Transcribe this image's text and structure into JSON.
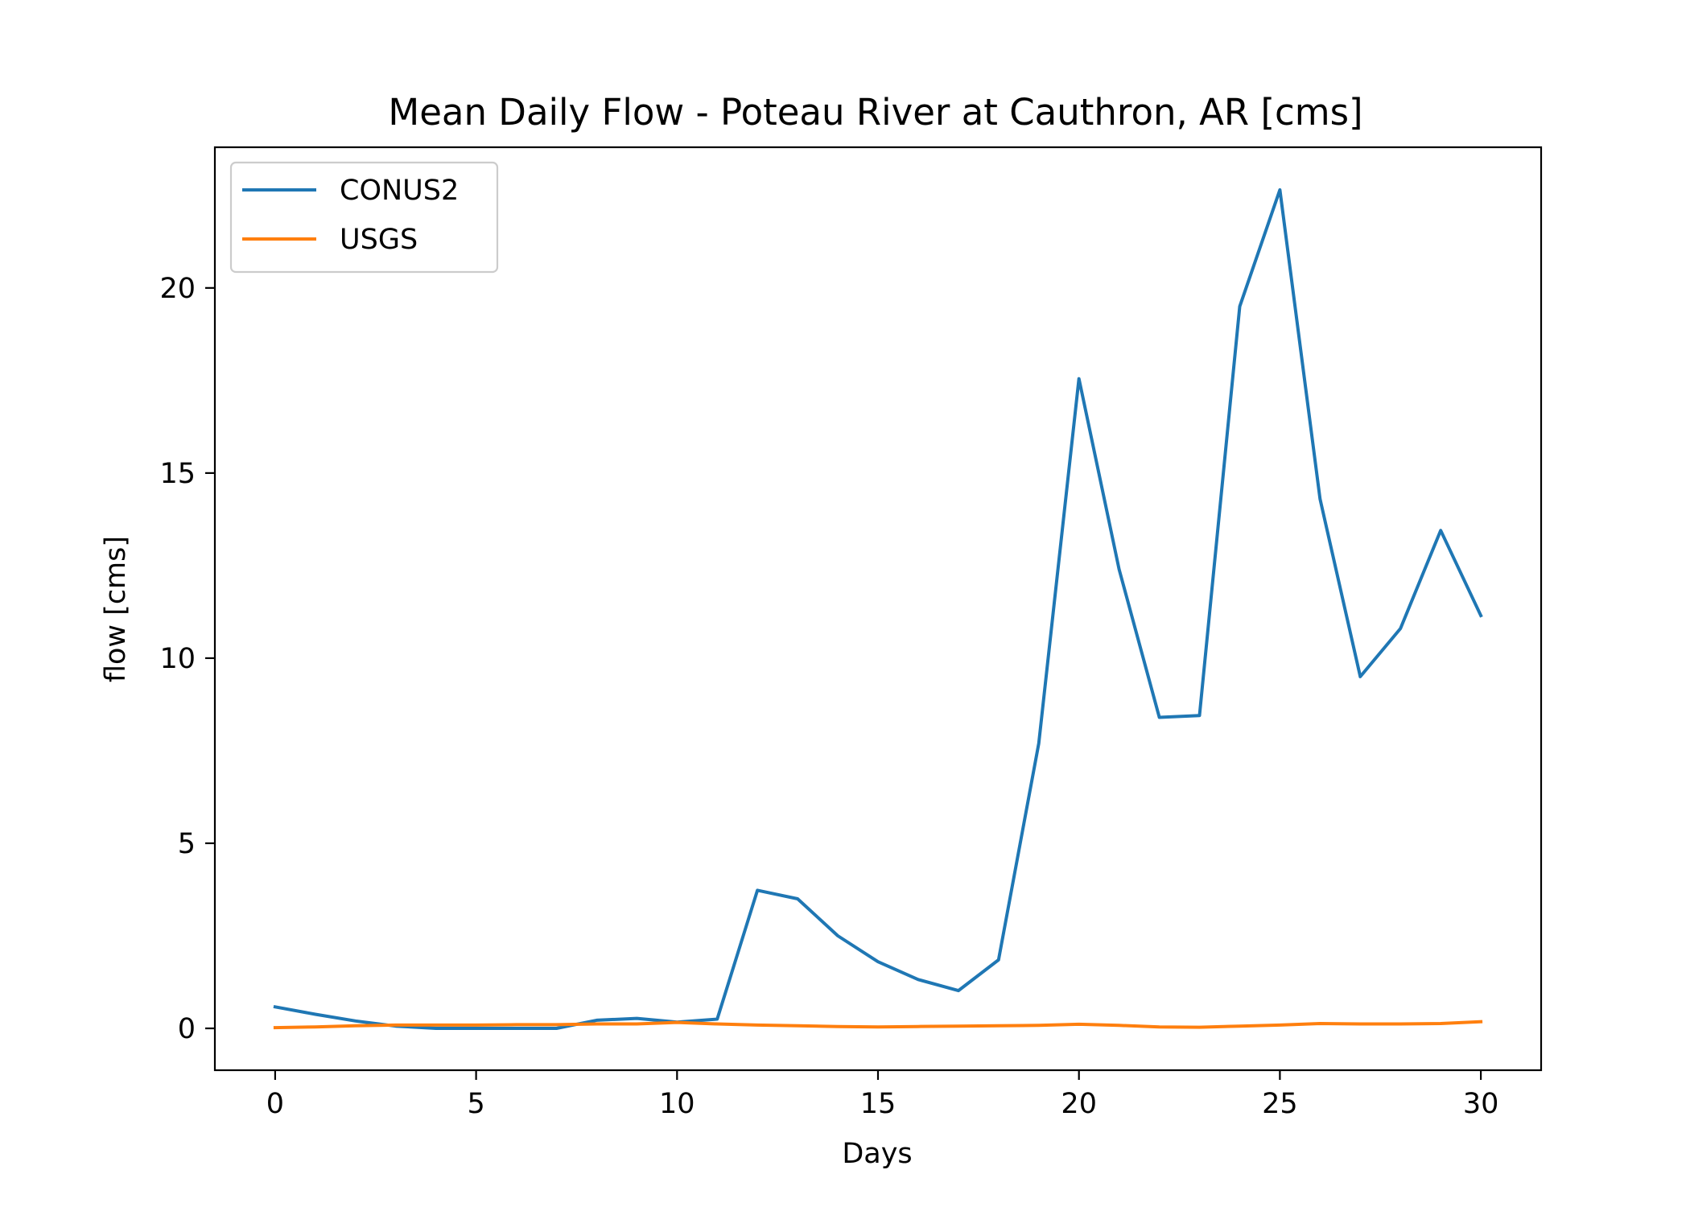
{
  "chart_data": {
    "type": "line",
    "title": "Mean Daily Flow - Poteau River at Cauthron, AR [cms]",
    "xlabel": "Days",
    "ylabel": "flow [cms]",
    "xlim": [
      -1.5,
      31.5
    ],
    "ylim": [
      -1.13,
      23.8
    ],
    "xticks": [
      0,
      5,
      10,
      15,
      20,
      25,
      30
    ],
    "yticks": [
      0,
      5,
      10,
      15,
      20
    ],
    "grid": false,
    "legend": "top-left",
    "x": [
      0,
      1,
      2,
      3,
      4,
      5,
      6,
      7,
      8,
      9,
      10,
      11,
      12,
      13,
      14,
      15,
      16,
      17,
      18,
      19,
      20,
      21,
      22,
      23,
      24,
      25,
      26,
      27,
      28,
      29,
      30
    ],
    "series": [
      {
        "name": "CONUS2",
        "color": "#1f77b4",
        "values": [
          0.58,
          0.38,
          0.2,
          0.06,
          0.0,
          0.0,
          0.0,
          0.0,
          0.22,
          0.27,
          0.17,
          0.25,
          3.73,
          3.5,
          2.5,
          1.8,
          1.32,
          1.02,
          1.85,
          7.7,
          17.55,
          12.4,
          8.4,
          8.45,
          19.5,
          22.65,
          14.3,
          9.5,
          10.8,
          13.45,
          11.15
        ]
      },
      {
        "name": "USGS",
        "color": "#ff7f0e",
        "values": [
          0.02,
          0.04,
          0.07,
          0.09,
          0.09,
          0.09,
          0.1,
          0.1,
          0.12,
          0.12,
          0.16,
          0.12,
          0.09,
          0.07,
          0.05,
          0.04,
          0.05,
          0.06,
          0.07,
          0.08,
          0.11,
          0.08,
          0.04,
          0.03,
          0.06,
          0.09,
          0.13,
          0.12,
          0.12,
          0.13,
          0.18
        ]
      }
    ]
  }
}
